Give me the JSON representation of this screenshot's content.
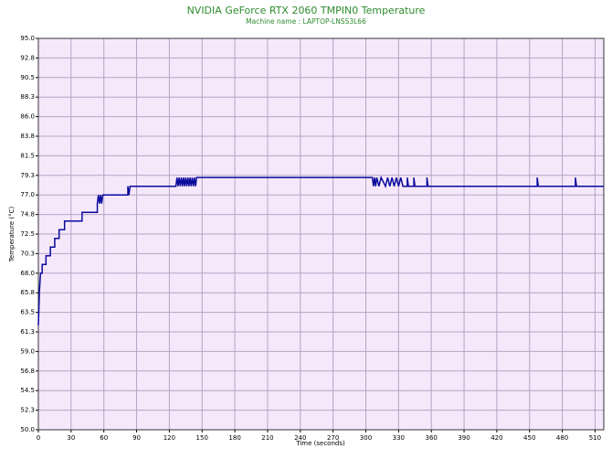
{
  "chart_data": {
    "type": "line",
    "title": "NVIDIA GeForce RTX 2060 TMPIN0 Temperature",
    "subtitle": "Machine name : LAPTOP-LNSS3L66",
    "x_label": "Time (seconds)",
    "y_label": "Temperature (°C)",
    "xlim": [
      0,
      518
    ],
    "xticks": [
      0,
      30,
      60,
      90,
      120,
      150,
      180,
      210,
      240,
      270,
      300,
      330,
      360,
      390,
      420,
      450,
      480,
      510
    ],
    "ylim": [
      50,
      95
    ],
    "yticks": [
      {
        "value": 50,
        "label": "50.0"
      },
      {
        "value": 52.25,
        "label": "52.3"
      },
      {
        "value": 54.5,
        "label": "54.5"
      },
      {
        "value": 56.75,
        "label": "56.8"
      },
      {
        "value": 59,
        "label": "59.0"
      },
      {
        "value": 61.25,
        "label": "61.3"
      },
      {
        "value": 63.5,
        "label": "63.5"
      },
      {
        "value": 65.75,
        "label": "65.8"
      },
      {
        "value": 68,
        "label": "68.0"
      },
      {
        "value": 70.25,
        "label": "70.3"
      },
      {
        "value": 72.5,
        "label": "72.5"
      },
      {
        "value": 74.75,
        "label": "74.8"
      },
      {
        "value": 77,
        "label": "77.0"
      },
      {
        "value": 79.25,
        "label": "79.3"
      },
      {
        "value": 81.5,
        "label": "81.5"
      },
      {
        "value": 83.75,
        "label": "83.8"
      },
      {
        "value": 86,
        "label": "86.0"
      },
      {
        "value": 88.25,
        "label": "88.3"
      },
      {
        "value": 90.5,
        "label": "90.5"
      },
      {
        "value": 92.75,
        "label": "92.8"
      },
      {
        "value": 95,
        "label": "95.0"
      }
    ],
    "grid": true,
    "color": "#0a0a9c",
    "x": [
      0,
      0.5,
      1,
      1.5,
      2,
      3.5,
      3.5,
      7,
      7,
      11,
      11,
      15,
      15,
      19,
      19,
      24,
      24,
      40,
      40,
      54,
      54,
      55,
      56,
      57,
      58,
      59,
      82,
      82,
      83,
      84,
      126,
      127,
      128,
      129,
      130,
      131,
      132,
      133,
      134,
      135,
      136,
      137,
      138,
      139,
      140,
      141,
      142,
      143,
      144,
      145,
      306,
      307,
      308,
      309,
      310,
      312,
      314,
      318,
      320,
      322,
      324,
      326,
      328,
      330,
      332,
      334,
      338,
      338,
      339,
      344,
      344,
      345,
      356,
      356,
      357,
      457,
      457,
      458,
      492,
      492,
      493,
      518
    ],
    "values": [
      62,
      64,
      66,
      67,
      68,
      68,
      69,
      69,
      70,
      70,
      71,
      71,
      72,
      72,
      73,
      73,
      74,
      74,
      75,
      75,
      76,
      77,
      76,
      77,
      76,
      77,
      77,
      78,
      77,
      78,
      78,
      79,
      78,
      79,
      78,
      79,
      78,
      79,
      78,
      79,
      78,
      79,
      78,
      79,
      78,
      79,
      78,
      79,
      78,
      79,
      79,
      78,
      79,
      78,
      79,
      78,
      79,
      78,
      79,
      78,
      79,
      78,
      79,
      78,
      79,
      78,
      78,
      79,
      78,
      78,
      79,
      78,
      78,
      79,
      78,
      78,
      79,
      78,
      78,
      79,
      78,
      78
    ]
  }
}
